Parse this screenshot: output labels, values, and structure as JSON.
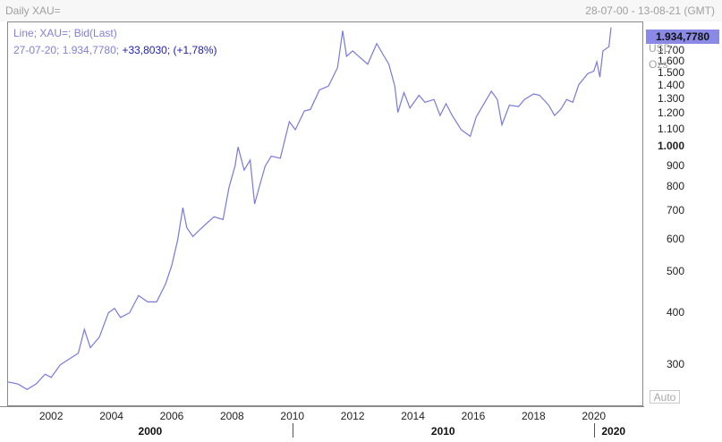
{
  "window": {
    "title": "Daily XAU=",
    "date_range": "28-07-00 - 13-08-21 (GMT)"
  },
  "legend": {
    "line1": "Line; XAU=; Bid(Last)",
    "line2_main": "27-07-20; 1.934,7780; ",
    "line2_change": "+33,8030; (+1,78%)"
  },
  "axis": {
    "last_value": "1.934,7780",
    "unit_currency": "USD",
    "unit_measure": "Ozs",
    "auto_button": "Auto"
  },
  "colors": {
    "line": "#7878e0",
    "last_box": "#8a8ae6"
  },
  "chart_data": {
    "type": "line",
    "title": "Daily XAU=",
    "series": [
      {
        "name": "XAU= Bid(Last)",
        "points": [
          [
            2000.57,
            273
          ],
          [
            2000.9,
            270
          ],
          [
            2001.2,
            262
          ],
          [
            2001.5,
            270
          ],
          [
            2001.8,
            285
          ],
          [
            2002.0,
            280
          ],
          [
            2002.3,
            300
          ],
          [
            2002.6,
            310
          ],
          [
            2002.9,
            320
          ],
          [
            2003.1,
            365
          ],
          [
            2003.3,
            330
          ],
          [
            2003.6,
            350
          ],
          [
            2003.9,
            400
          ],
          [
            2004.1,
            410
          ],
          [
            2004.3,
            390
          ],
          [
            2004.6,
            400
          ],
          [
            2004.9,
            440
          ],
          [
            2005.2,
            425
          ],
          [
            2005.5,
            425
          ],
          [
            2005.8,
            470
          ],
          [
            2006.0,
            520
          ],
          [
            2006.2,
            600
          ],
          [
            2006.37,
            715
          ],
          [
            2006.5,
            640
          ],
          [
            2006.7,
            610
          ],
          [
            2006.9,
            630
          ],
          [
            2007.2,
            660
          ],
          [
            2007.4,
            680
          ],
          [
            2007.7,
            670
          ],
          [
            2007.9,
            800
          ],
          [
            2008.1,
            900
          ],
          [
            2008.2,
            1000
          ],
          [
            2008.4,
            880
          ],
          [
            2008.6,
            930
          ],
          [
            2008.75,
            730
          ],
          [
            2008.9,
            800
          ],
          [
            2009.1,
            900
          ],
          [
            2009.3,
            950
          ],
          [
            2009.6,
            940
          ],
          [
            2009.9,
            1150
          ],
          [
            2010.1,
            1100
          ],
          [
            2010.4,
            1220
          ],
          [
            2010.6,
            1230
          ],
          [
            2010.9,
            1370
          ],
          [
            2011.2,
            1400
          ],
          [
            2011.5,
            1550
          ],
          [
            2011.67,
            1900
          ],
          [
            2011.8,
            1650
          ],
          [
            2012.0,
            1700
          ],
          [
            2012.2,
            1650
          ],
          [
            2012.5,
            1580
          ],
          [
            2012.8,
            1770
          ],
          [
            2013.0,
            1670
          ],
          [
            2013.2,
            1580
          ],
          [
            2013.4,
            1400
          ],
          [
            2013.5,
            1210
          ],
          [
            2013.7,
            1350
          ],
          [
            2013.9,
            1240
          ],
          [
            2014.2,
            1330
          ],
          [
            2014.4,
            1280
          ],
          [
            2014.7,
            1300
          ],
          [
            2014.9,
            1190
          ],
          [
            2015.1,
            1270
          ],
          [
            2015.3,
            1190
          ],
          [
            2015.6,
            1100
          ],
          [
            2015.9,
            1060
          ],
          [
            2016.1,
            1180
          ],
          [
            2016.3,
            1250
          ],
          [
            2016.6,
            1360
          ],
          [
            2016.8,
            1300
          ],
          [
            2016.95,
            1130
          ],
          [
            2017.2,
            1260
          ],
          [
            2017.5,
            1250
          ],
          [
            2017.7,
            1300
          ],
          [
            2018.0,
            1340
          ],
          [
            2018.2,
            1330
          ],
          [
            2018.5,
            1260
          ],
          [
            2018.7,
            1190
          ],
          [
            2018.9,
            1230
          ],
          [
            2019.1,
            1300
          ],
          [
            2019.3,
            1280
          ],
          [
            2019.5,
            1410
          ],
          [
            2019.8,
            1500
          ],
          [
            2020.0,
            1520
          ],
          [
            2020.1,
            1600
          ],
          [
            2020.2,
            1470
          ],
          [
            2020.3,
            1700
          ],
          [
            2020.5,
            1740
          ],
          [
            2020.57,
            1935
          ]
        ]
      }
    ],
    "xlim": [
      2000.57,
      2021.61
    ],
    "ylim": [
      240,
      1990
    ],
    "y_scale": "log",
    "xtick_labels": [
      "2002",
      "2004",
      "2006",
      "2008",
      "2010",
      "2012",
      "2014",
      "2016",
      "2018",
      "2020"
    ],
    "x_major_labels": [
      "2000",
      "2010",
      "2020"
    ],
    "ytick_labels": [
      {
        "v": 300,
        "t": "300"
      },
      {
        "v": 400,
        "t": "400"
      },
      {
        "v": 500,
        "t": "500"
      },
      {
        "v": 600,
        "t": "600"
      },
      {
        "v": 700,
        "t": "700"
      },
      {
        "v": 800,
        "t": "800"
      },
      {
        "v": 900,
        "t": "900"
      },
      {
        "v": 1000,
        "t": "1.000"
      },
      {
        "v": 1100,
        "t": "1.100"
      },
      {
        "v": 1200,
        "t": "1.200"
      },
      {
        "v": 1300,
        "t": "1.300"
      },
      {
        "v": 1400,
        "t": "1.400"
      },
      {
        "v": 1500,
        "t": "1.500"
      },
      {
        "v": 1600,
        "t": "1.600"
      },
      {
        "v": 1700,
        "t": "1.700"
      }
    ],
    "grid": false,
    "legend_position": "top-left"
  }
}
